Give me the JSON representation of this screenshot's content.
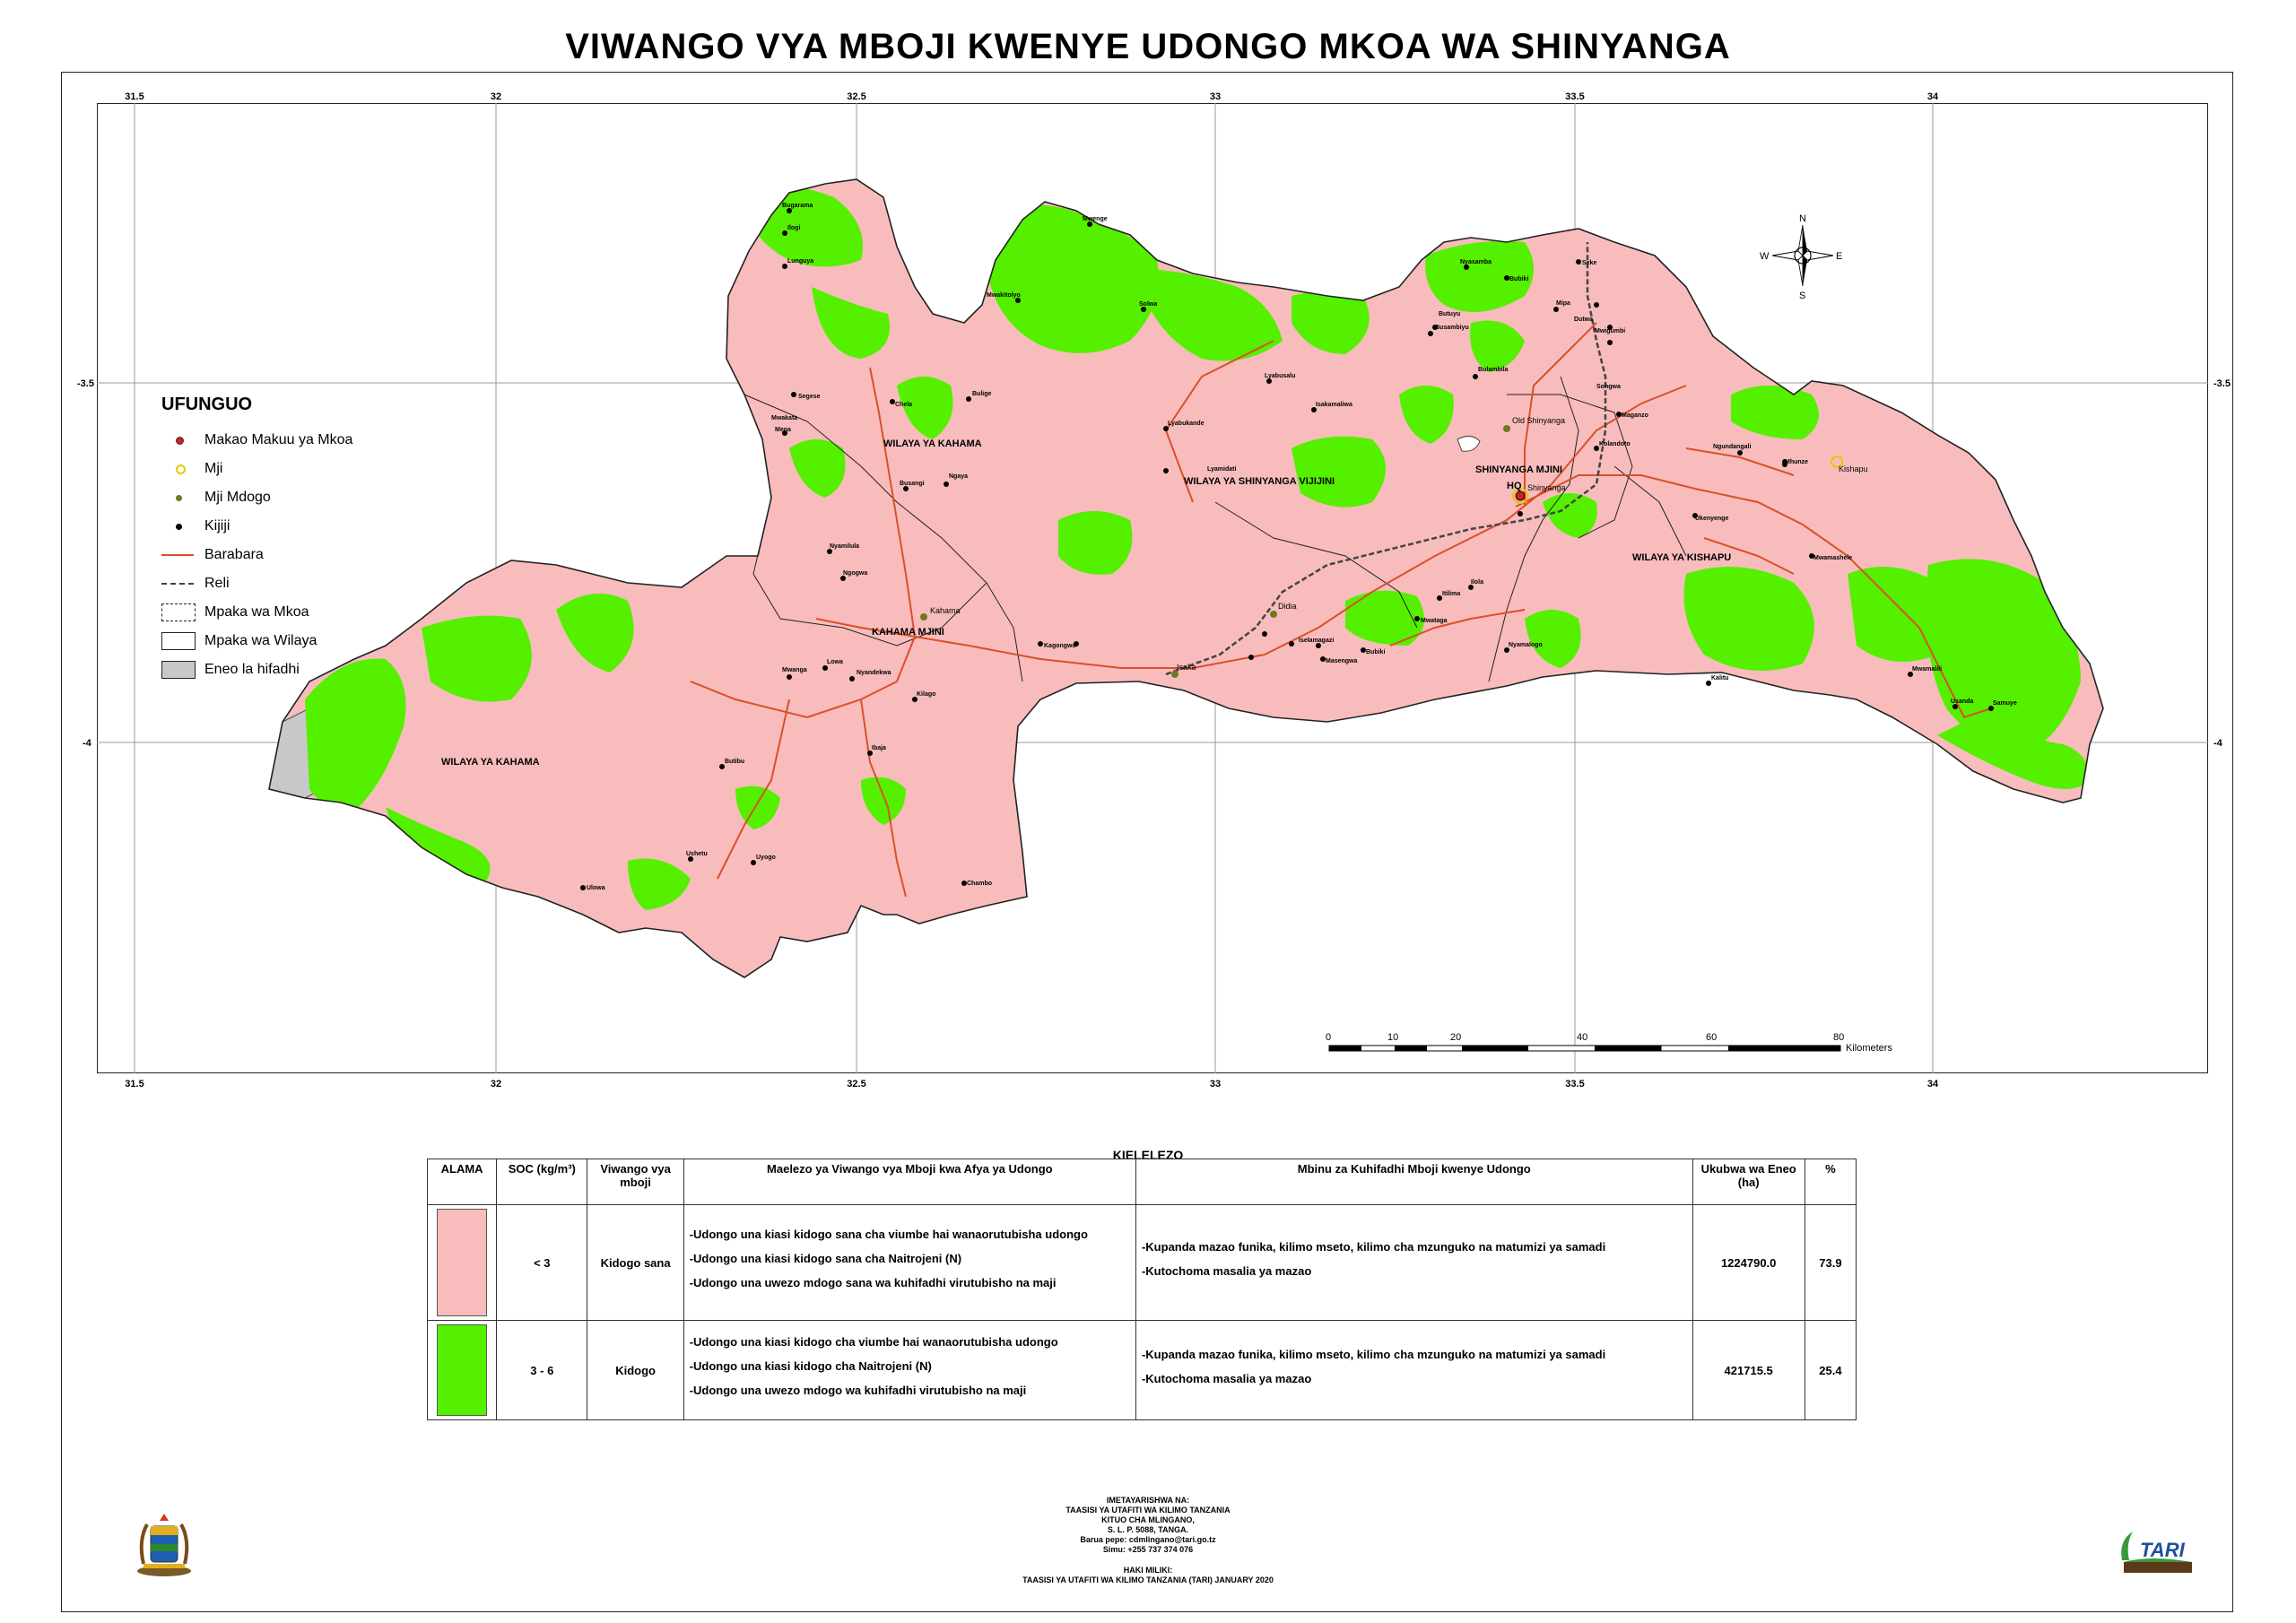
{
  "title": "VIWANGO VYA MBOJI KWENYE UDONGO MKOA WA SHINYANGA",
  "colors": {
    "kidogo_sana": "#f9bcbc",
    "kidogo": "#55f000",
    "hifadhi": "#c8c8c8",
    "road": "#d9502a",
    "rail": "#444444"
  },
  "grid": {
    "lon_labels": [
      "31.5",
      "32",
      "32.5",
      "33",
      "33.5",
      "34"
    ],
    "lat_labels": [
      "-3.5",
      "-4"
    ]
  },
  "compass": {
    "n": "N",
    "s": "S",
    "e": "E",
    "w": "W"
  },
  "legend": {
    "title": "UFUNGUO",
    "items": [
      {
        "label": "Makao Makuu ya Mkoa",
        "symbol": "red-dot-icon"
      },
      {
        "label": "Mji",
        "symbol": "yellow-ring-icon"
      },
      {
        "label": "Mji Mdogo",
        "symbol": "olive-dot-icon"
      },
      {
        "label": "Kijiji",
        "symbol": "black-dot-icon"
      },
      {
        "label": "Barabara",
        "symbol": "road-line-icon"
      },
      {
        "label": "Reli",
        "symbol": "rail-line-icon"
      },
      {
        "label": "Mpaka wa Mkoa",
        "symbol": "dashed-box-icon"
      },
      {
        "label": "Mpaka wa Wilaya",
        "symbol": "box-icon"
      },
      {
        "label": "Eneo la hifadhi",
        "symbol": "grey-box-icon"
      }
    ]
  },
  "districts": [
    "WILAYA YA KAHAMA",
    "KAHAMA MJINI",
    "WILAYA YA KAHAMA",
    "WILAYA YA SHINYANGA VIJIJINI",
    "SHINYANGA MJINI",
    "WILAYA YA KISHAPU"
  ],
  "places": {
    "towns": [
      "Kahama",
      "Old Shinyanga",
      "Shinyanga",
      "Kishapu",
      "Isaka",
      "Didia"
    ],
    "hq": "HQ",
    "villages": [
      "Bugarama",
      "Ilogi",
      "Lunguya",
      "Segese",
      "Chela",
      "Bulige",
      "Mega",
      "Mwakata",
      "Busangi",
      "Ngaya",
      "Nyamilula",
      "Ngogwa",
      "Mwanga",
      "Lowa",
      "Nyandekwa",
      "Kilago",
      "Kagongwa",
      "Ibaja",
      "Butibu",
      "Ushetu",
      "Uyogo",
      "Ulowa",
      "Chambo",
      "Mwenge",
      "Mwakitolyo",
      "Solwa",
      "Lyabukande",
      "Lyabusalu",
      "Isakamaliwa",
      "Lyamidati",
      "Nyasamba",
      "Bubiki",
      "Butuyu",
      "Busambiyu",
      "Bulambila",
      "Seke",
      "Mipa",
      "Dutwa",
      "Mwigumbi",
      "Songwa",
      "Maganzo",
      "Kolandoto",
      "Ngundangali",
      "Lagana",
      "Mwamashele",
      "Ukenyenge",
      "Kalitu",
      "Mhunze",
      "Mwamalili",
      "Usanda",
      "Samuye",
      "Masengwa",
      "Nyamalogo",
      "Iselamagazi",
      "Itilima",
      "Mwataga",
      "Ilola",
      "Bubiki",
      "Kituli",
      "Puni",
      "Imesela",
      "Mwakitolyo",
      "Solwa",
      "Bukene",
      "Idukilo",
      "Talaga",
      "Ipeja",
      "Mwakipoya",
      "Bulungwa",
      "Ulewe",
      "Shishiyu",
      "Mwime",
      "Kisanga",
      "Budeka",
      "Mwadui"
    ]
  },
  "scalebar": {
    "ticks": [
      "0",
      "10",
      "20",
      "40",
      "60",
      "80"
    ],
    "unit": "Kilometers"
  },
  "key": {
    "caption": "KIELELEZO",
    "headers": {
      "alama": "ALAMA",
      "soc": "SOC (kg/m³)",
      "viwango": "Viwango vya mboji",
      "maelezo": "Maelezo ya Viwango vya Mboji kwa Afya ya Udongo",
      "mbinu": "Mbinu za Kuhifadhi Mboji kwenye Udongo",
      "ukubwa": "Ukubwa wa Eneo (ha)",
      "pct": "%"
    },
    "rows": [
      {
        "soc": "< 3",
        "level": "Kidogo sana",
        "color": "#f9bcbc",
        "desc": [
          "-Udongo una kiasi kidogo sana cha viumbe hai wanaorutubisha udongo",
          "-Udongo una kiasi kidogo sana cha Naitrojeni (N)",
          "-Udongo una uwezo mdogo sana wa kuhifadhi virutubisho na maji"
        ],
        "methods": [
          "-Kupanda mazao funika, kilimo mseto, kilimo cha mzunguko na matumizi ya samadi",
          "-Kutochoma masalia ya mazao"
        ],
        "area": "1224790.0",
        "pct": "73.9"
      },
      {
        "soc": "3 - 6",
        "level": "Kidogo",
        "color": "#55f000",
        "desc": [
          "-Udongo una kiasi kidogo cha viumbe hai wanaorutubisha udongo",
          "-Udongo una kiasi kidogo cha Naitrojeni (N)",
          "-Udongo una uwezo mdogo wa kuhifadhi virutubisho na maji"
        ],
        "methods": [
          "-Kupanda mazao funika, kilimo mseto, kilimo cha mzunguko na matumizi ya samadi",
          "-Kutochoma masalia ya mazao"
        ],
        "area": "421715.5",
        "pct": "25.4"
      }
    ]
  },
  "credits": {
    "lines": [
      "IMETAYARISHWA NA:",
      "TAASISI YA UTAFITI WA KILIMO TANZANIA",
      "KITUO CHA MLINGANO,",
      "S. L. P. 5088, TANGA.",
      "Barua pepe: cdmlingano@tari.go.tz",
      "Simu: +255 737 374 076"
    ],
    "copyright_label": "HAKI MILIKI:",
    "copyright": "TAASISI YA UTAFITI WA KILIMO TANZANIA (TARI) JANUARY 2020"
  },
  "logo_text": "TARI"
}
